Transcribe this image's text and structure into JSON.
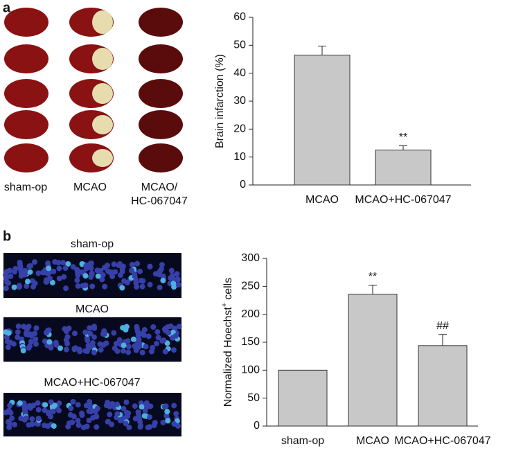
{
  "panels": {
    "a": {
      "label": "a",
      "captions": [
        "sham-op",
        "MCAO",
        "MCAO/",
        "HC-067047"
      ]
    },
    "b": {
      "label": "b",
      "captions": [
        "sham-op",
        "MCAO",
        "MCAO+HC-067047"
      ]
    }
  },
  "chart_data": [
    {
      "type": "bar",
      "ylabel": "Brain infarction (%)",
      "categories": [
        "MCAO",
        "MCAO+HC-067047"
      ],
      "values": [
        46.5,
        12.5
      ],
      "errors": [
        3.2,
        1.5
      ],
      "significance": [
        null,
        "**"
      ],
      "color": "#c8c8c8",
      "ylim": [
        0,
        60
      ],
      "yticks": [
        0,
        10,
        20,
        30,
        40,
        50,
        60
      ]
    },
    {
      "type": "bar",
      "ylabel": "Normalized Hoechst",
      "ylabel_sup": "+",
      "ylabel_end": "cells",
      "categories": [
        "sham-op",
        "MCAO",
        "MCAO+HC-067047"
      ],
      "values": [
        100,
        236,
        144
      ],
      "errors": [
        null,
        16,
        20
      ],
      "significance": [
        null,
        "**",
        "##"
      ],
      "color": "#c8c8c8",
      "ylim": [
        0,
        300
      ],
      "yticks": [
        0,
        50,
        100,
        150,
        200,
        250,
        300
      ]
    }
  ]
}
